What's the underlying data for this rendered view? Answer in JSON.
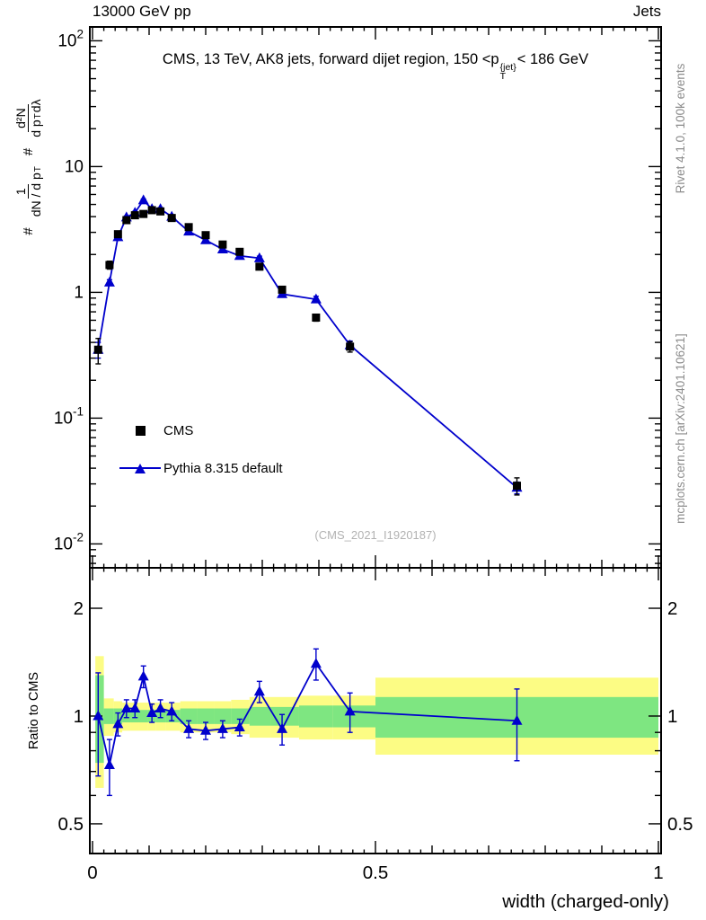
{
  "colors": {
    "cms": "#000000",
    "pythia": "#0000cc",
    "band_yellow": "#fcfc84",
    "band_green": "#7ee681",
    "gray_text": "#8c8c8c",
    "watermark": "#b2b2b2"
  },
  "chart_data": {
    "type": "scatter",
    "header_left": "13000 GeV pp",
    "header_right": "Jets",
    "panel_title": {
      "part1": "CMS, 13 TeV, AK8 jets, forward dijet region, 150 <p",
      "sup": "{jet}",
      "sub": "T",
      "part2": "< 186 GeV"
    },
    "ylabel": {
      "hash1": "#",
      "frac1_num": "1",
      "frac1_den_a": "dN / d p",
      "frac1_den_sub": "T",
      "hash2": "#",
      "frac2_num": "d²N",
      "frac2_den_a": "d p",
      "frac2_den_sub": "T",
      "frac2_den_b": "dλ"
    },
    "ratio_ylabel": "Ratio to CMS",
    "xlabel": "width (charged-only)",
    "watermark": "(CMS_2021_I1920187)",
    "side_note_top": "Rivet 4.1.0, 100k events",
    "side_note_bottom": "mcplots.cern.ch [arXiv:2401.10621]",
    "legend": [
      {
        "label": "CMS",
        "marker": "square"
      },
      {
        "label": "Pythia 8.315 default",
        "marker": "triangle-line"
      }
    ],
    "x_range": [
      0,
      1
    ],
    "x_ticks": [
      {
        "v": 0,
        "label": "0"
      },
      {
        "v": 0.5,
        "label": "0.5"
      },
      {
        "v": 1,
        "label": "1"
      }
    ],
    "main_axis": {
      "scale": "log",
      "log_min": -2.19,
      "log_max": 2.11,
      "ticks": [
        {
          "v": 100,
          "mant": "10",
          "exp": "2"
        },
        {
          "v": 10,
          "mant": "10",
          "exp": ""
        },
        {
          "v": 1,
          "mant": "1",
          "exp": ""
        },
        {
          "v": 0.1,
          "mant": "10",
          "exp": "-1"
        },
        {
          "v": 0.01,
          "mant": "10",
          "exp": "-2"
        }
      ]
    },
    "ratio_axis": {
      "scale": "log",
      "log_min": -0.384,
      "log_max": 0.414,
      "ticks": [
        {
          "v": 2,
          "label": "2"
        },
        {
          "v": 1,
          "label": "1"
        },
        {
          "v": 0.5,
          "label": "0.5"
        }
      ]
    },
    "x": [
      0.01,
      0.03,
      0.045,
      0.06,
      0.075,
      0.09,
      0.105,
      0.12,
      0.14,
      0.17,
      0.2,
      0.23,
      0.26,
      0.295,
      0.335,
      0.395,
      0.455,
      0.75
    ],
    "series": [
      {
        "name": "CMS",
        "marker": "square",
        "color": "#000000",
        "y": [
          0.35,
          1.65,
          2.9,
          3.75,
          4.1,
          4.2,
          4.5,
          4.4,
          3.9,
          3.3,
          2.85,
          2.4,
          2.1,
          1.6,
          1.05,
          0.63,
          0.37,
          0.029
        ],
        "yerr": [
          0.08,
          0.12,
          0.12,
          0.12,
          0.12,
          0.12,
          0.12,
          0.12,
          0.11,
          0.1,
          0.09,
          0.08,
          0.08,
          0.07,
          0.05,
          0.04,
          0.035,
          0.0045
        ]
      },
      {
        "name": "Pythia 8.315 default",
        "marker": "triangle",
        "color": "#0000cc",
        "line": true,
        "y": [
          0.35,
          1.2,
          2.75,
          3.95,
          4.3,
          5.4,
          4.6,
          4.6,
          4.0,
          3.05,
          2.6,
          2.2,
          1.95,
          1.87,
          0.97,
          0.88,
          0.38,
          0.028
        ],
        "yerr": [
          0.05,
          0.06,
          0.08,
          0.1,
          0.11,
          0.12,
          0.11,
          0.11,
          0.1,
          0.08,
          0.07,
          0.06,
          0.06,
          0.07,
          0.04,
          0.05,
          0.03,
          0.003
        ]
      }
    ],
    "ratio": {
      "y": [
        1.0,
        0.73,
        0.95,
        1.05,
        1.05,
        1.29,
        1.02,
        1.05,
        1.03,
        0.92,
        0.91,
        0.92,
        0.93,
        1.17,
        0.92,
        1.4,
        1.03,
        0.97
      ],
      "yerr": [
        0.32,
        0.13,
        0.07,
        0.06,
        0.06,
        0.09,
        0.06,
        0.06,
        0.06,
        0.05,
        0.05,
        0.05,
        0.05,
        0.08,
        0.09,
        0.14,
        0.13,
        0.22
      ],
      "bands": [
        {
          "name": "total-uncertainty",
          "color": "#fcfc84",
          "bins": [
            [
              0.005,
              0.02,
              0.63,
              1.47
            ],
            [
              0.02,
              0.0375,
              0.88,
              1.12
            ],
            [
              0.0375,
              0.0525,
              0.9,
              1.1
            ],
            [
              0.0525,
              0.0675,
              0.91,
              1.09
            ],
            [
              0.0675,
              0.0825,
              0.91,
              1.09
            ],
            [
              0.0825,
              0.0975,
              0.91,
              1.09
            ],
            [
              0.0975,
              0.1125,
              0.91,
              1.09
            ],
            [
              0.1125,
              0.13,
              0.91,
              1.09
            ],
            [
              0.13,
              0.155,
              0.91,
              1.09
            ],
            [
              0.155,
              0.185,
              0.9,
              1.1
            ],
            [
              0.185,
              0.215,
              0.9,
              1.1
            ],
            [
              0.215,
              0.245,
              0.9,
              1.1
            ],
            [
              0.245,
              0.2775,
              0.89,
              1.11
            ],
            [
              0.2775,
              0.315,
              0.87,
              1.13
            ],
            [
              0.315,
              0.365,
              0.87,
              1.13
            ],
            [
              0.365,
              0.425,
              0.86,
              1.14
            ],
            [
              0.425,
              0.5,
              0.86,
              1.14
            ],
            [
              0.5,
              1.0,
              0.78,
              1.28
            ]
          ]
        },
        {
          "name": "stat-uncertainty",
          "color": "#7ee681",
          "bins": [
            [
              0.005,
              0.02,
              0.74,
              1.3
            ],
            [
              0.02,
              0.0375,
              0.95,
              1.05
            ],
            [
              0.0375,
              0.0525,
              0.95,
              1.05
            ],
            [
              0.0525,
              0.0675,
              0.96,
              1.04
            ],
            [
              0.0675,
              0.0825,
              0.96,
              1.04
            ],
            [
              0.0825,
              0.0975,
              0.96,
              1.04
            ],
            [
              0.0975,
              0.1125,
              0.96,
              1.04
            ],
            [
              0.1125,
              0.13,
              0.96,
              1.04
            ],
            [
              0.13,
              0.155,
              0.96,
              1.04
            ],
            [
              0.155,
              0.185,
              0.95,
              1.05
            ],
            [
              0.185,
              0.215,
              0.95,
              1.05
            ],
            [
              0.215,
              0.245,
              0.95,
              1.05
            ],
            [
              0.245,
              0.2775,
              0.95,
              1.05
            ],
            [
              0.2775,
              0.315,
              0.94,
              1.06
            ],
            [
              0.315,
              0.365,
              0.94,
              1.06
            ],
            [
              0.365,
              0.425,
              0.93,
              1.07
            ],
            [
              0.425,
              0.5,
              0.93,
              1.07
            ],
            [
              0.5,
              1.0,
              0.87,
              1.13
            ]
          ]
        }
      ]
    }
  }
}
